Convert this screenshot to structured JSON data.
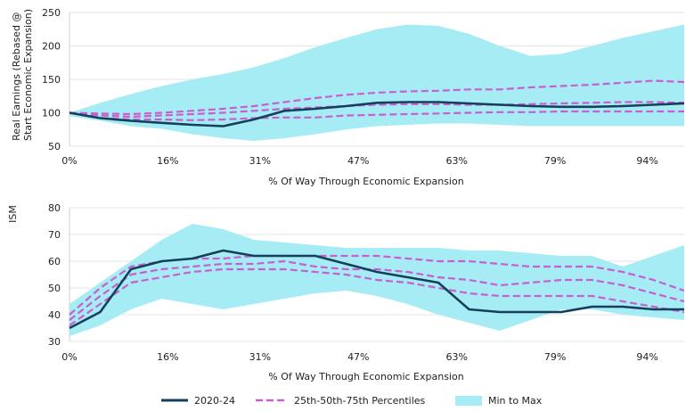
{
  "colors": {
    "series_2020_24": "#14405c",
    "percentiles": "#c95fcf",
    "min_max_band": "#a6ecf4",
    "grid": "#e6e6e6",
    "text": "#222222"
  },
  "legend": [
    {
      "key": "2020-24",
      "label": "2020-24",
      "style": "solid-line",
      "color": "#14405c"
    },
    {
      "key": "pct",
      "label": "25th-50th-75th Percentiles",
      "style": "dashed-line",
      "color": "#c95fcf"
    },
    {
      "key": "band",
      "label": "Min to Max",
      "style": "area",
      "color": "#a6ecf4"
    }
  ],
  "chart_data": [
    {
      "type": "area",
      "id": "earnings",
      "title": "",
      "xlabel": "% Of Way Through Economic Expansion",
      "ylabel": "Real Earnings (Rebased @ Start Economic Expansion)",
      "xlim": [
        0,
        100
      ],
      "ylim": [
        50,
        250
      ],
      "y_ticks": [
        50,
        100,
        150,
        200,
        250
      ],
      "x_tick_labels": [
        "0%",
        "16%",
        "31%",
        "47%",
        "63%",
        "79%",
        "94%"
      ],
      "x_tick_values": [
        0,
        16,
        31,
        47,
        63,
        79,
        94
      ],
      "grid": "horizontal",
      "legend_position": "bottom",
      "x": [
        0,
        5,
        10,
        15,
        20,
        25,
        30,
        35,
        40,
        45,
        50,
        55,
        60,
        65,
        70,
        75,
        80,
        85,
        90,
        95,
        100
      ],
      "band_min": [
        95,
        88,
        80,
        76,
        68,
        62,
        58,
        62,
        68,
        75,
        80,
        82,
        84,
        84,
        82,
        80,
        80,
        80,
        80,
        80,
        80
      ],
      "band_max": [
        100,
        115,
        128,
        140,
        150,
        158,
        168,
        182,
        198,
        212,
        225,
        232,
        230,
        218,
        200,
        185,
        188,
        200,
        212,
        222,
        232
      ],
      "series": [
        {
          "name": "2020-24",
          "values": [
            100,
            92,
            88,
            85,
            82,
            80,
            90,
            103,
            106,
            110,
            115,
            116,
            116,
            114,
            112,
            110,
            109,
            109,
            110,
            112,
            114
          ]
        },
        {
          "name": "25th",
          "values": [
            100,
            92,
            90,
            90,
            89,
            90,
            92,
            93,
            93,
            96,
            97,
            98,
            99,
            100,
            101,
            101,
            102,
            102,
            102,
            102,
            102
          ]
        },
        {
          "name": "50th",
          "values": [
            100,
            96,
            94,
            96,
            98,
            100,
            103,
            106,
            108,
            110,
            112,
            113,
            113,
            112,
            112,
            113,
            114,
            115,
            116,
            116,
            115
          ]
        },
        {
          "name": "75th",
          "values": [
            100,
            99,
            98,
            100,
            103,
            106,
            110,
            116,
            122,
            127,
            130,
            132,
            133,
            135,
            135,
            138,
            140,
            142,
            145,
            148,
            146
          ]
        }
      ]
    },
    {
      "type": "area",
      "id": "ism",
      "title": "",
      "xlabel": "% Of Way Through Economic Expansion",
      "ylabel": "ISM",
      "xlim": [
        0,
        100
      ],
      "ylim": [
        30,
        80
      ],
      "y_ticks": [
        30,
        40,
        50,
        60,
        70,
        80
      ],
      "x_tick_labels": [
        "0%",
        "16%",
        "31%",
        "47%",
        "63%",
        "79%",
        "94%"
      ],
      "x_tick_values": [
        0,
        16,
        31,
        47,
        63,
        79,
        94
      ],
      "grid": "horizontal",
      "legend_position": "bottom",
      "x": [
        0,
        5,
        10,
        15,
        20,
        25,
        30,
        35,
        40,
        45,
        50,
        55,
        60,
        65,
        70,
        75,
        80,
        85,
        90,
        95,
        100
      ],
      "band_min": [
        32,
        36,
        42,
        46,
        44,
        42,
        44,
        46,
        48,
        49,
        47,
        44,
        40,
        37,
        34,
        38,
        42,
        42,
        40,
        39,
        38
      ],
      "band_max": [
        44,
        52,
        60,
        68,
        74,
        72,
        68,
        67,
        66,
        65,
        65,
        65,
        65,
        64,
        64,
        63,
        62,
        62,
        58,
        62,
        66
      ],
      "series": [
        {
          "name": "2020-24",
          "values": [
            35,
            41,
            57,
            60,
            61,
            64,
            62,
            62,
            62,
            59,
            56,
            54,
            52,
            42,
            41,
            41,
            41,
            43,
            43,
            42,
            42
          ]
        },
        {
          "name": "25th",
          "values": [
            36,
            44,
            52,
            54,
            56,
            57,
            57,
            57,
            56,
            55,
            53,
            52,
            50,
            48,
            47,
            47,
            47,
            47,
            45,
            43,
            41
          ]
        },
        {
          "name": "50th",
          "values": [
            38,
            47,
            55,
            57,
            58,
            59,
            59,
            60,
            58,
            57,
            57,
            56,
            54,
            53,
            51,
            52,
            53,
            53,
            51,
            48,
            45
          ]
        },
        {
          "name": "75th",
          "values": [
            40,
            50,
            58,
            60,
            61,
            61,
            62,
            62,
            62,
            62,
            62,
            61,
            60,
            60,
            59,
            58,
            58,
            58,
            56,
            53,
            49
          ]
        }
      ]
    }
  ]
}
